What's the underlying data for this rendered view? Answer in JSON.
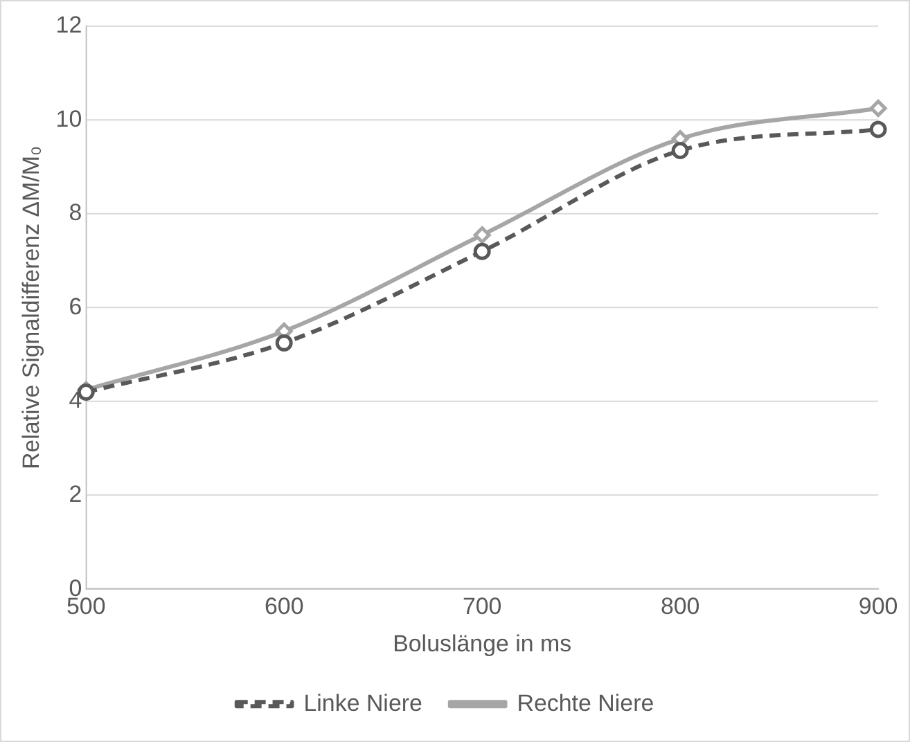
{
  "chart_data": {
    "type": "line",
    "xlabel": "Boluslänge in ms",
    "ylabel": "Relative Signaldifferenz ΔM/M₀",
    "x": [
      500,
      600,
      700,
      800,
      900
    ],
    "series": [
      {
        "name": "Rechte Niere",
        "color": "#a6a6a6",
        "marker": "diamond",
        "line_style": "solid",
        "values": [
          4.25,
          5.5,
          7.55,
          9.6,
          10.25
        ]
      },
      {
        "name": "Linke Niere",
        "color": "#595959",
        "marker": "circle",
        "line_style": "dashed",
        "values": [
          4.2,
          5.25,
          7.2,
          9.35,
          9.8
        ]
      }
    ],
    "xlim": [
      500,
      900
    ],
    "xticks": [
      500,
      600,
      700,
      800,
      900
    ],
    "ylim": [
      0,
      12
    ],
    "yticks": [
      0,
      2,
      4,
      6,
      8,
      10,
      12
    ],
    "grid": "y",
    "legend": "bottom"
  }
}
